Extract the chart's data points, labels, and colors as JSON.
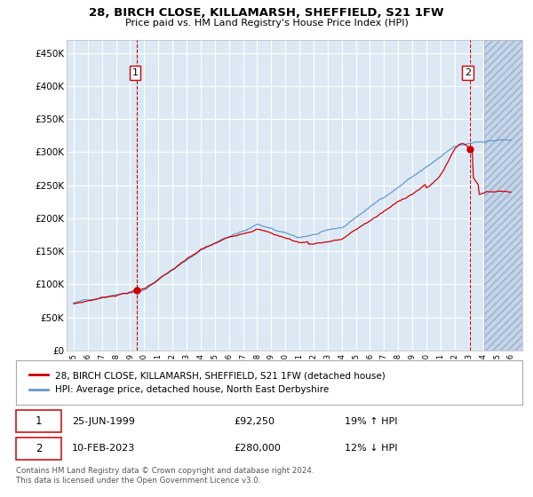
{
  "title": "28, BIRCH CLOSE, KILLAMARSH, SHEFFIELD, S21 1FW",
  "subtitle": "Price paid vs. HM Land Registry's House Price Index (HPI)",
  "red_line_color": "#cc0000",
  "blue_line_color": "#6699cc",
  "plot_bg_color": "#dce9f5",
  "grid_color": "#ffffff",
  "legend1": "28, BIRCH CLOSE, KILLAMARSH, SHEFFIELD, S21 1FW (detached house)",
  "legend2": "HPI: Average price, detached house, North East Derbyshire",
  "footer": "Contains HM Land Registry data © Crown copyright and database right 2024.\nThis data is licensed under the Open Government Licence v3.0.",
  "ylim": [
    0,
    470000
  ],
  "yticks": [
    0,
    50000,
    100000,
    150000,
    200000,
    250000,
    300000,
    350000,
    400000,
    450000
  ],
  "ytick_labels": [
    "£0",
    "£50K",
    "£100K",
    "£150K",
    "£200K",
    "£250K",
    "£300K",
    "£350K",
    "£400K",
    "£450K"
  ],
  "m1_month": 54,
  "m1_price": 92250,
  "m2_month": 337,
  "m2_price": 280000,
  "future_cutoff_month": 349,
  "total_months": 373,
  "start_year": 1995
}
